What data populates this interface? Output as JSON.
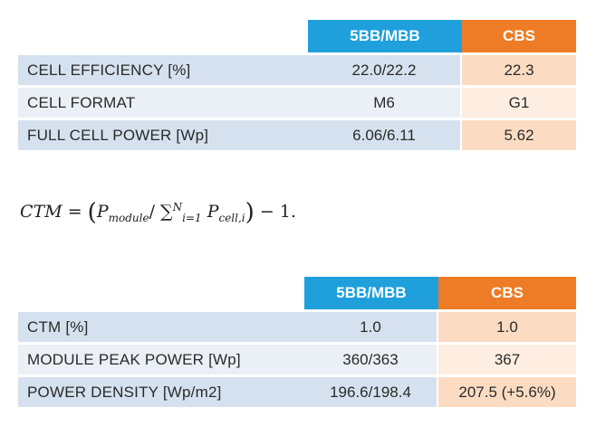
{
  "table1": {
    "headers": [
      "",
      "5BB/MBB",
      "CBS"
    ],
    "rows": [
      {
        "label": "CELL EFFICIENCY [%]",
        "mbb": "22.0/22.2",
        "cbs": "22.3"
      },
      {
        "label": "CELL FORMAT",
        "mbb": "M6",
        "cbs": "G1"
      },
      {
        "label": "FULL CELL POWER [Wp]",
        "mbb": "6.06/6.11",
        "cbs": "5.62"
      }
    ]
  },
  "formula": {
    "lhs": "CTM",
    "eq": " = ",
    "numerator": "P",
    "numerator_sub": "module",
    "slash": "/ ",
    "sum_sym": "∑",
    "sum_sub": "i=1",
    "sum_sup": "N",
    "term": "P",
    "term_sub": "cell,i",
    "tail": " − 1."
  },
  "table2": {
    "headers": [
      "",
      "5BB/MBB",
      "CBS"
    ],
    "rows": [
      {
        "label": "CTM [%]",
        "mbb": "1.0",
        "cbs": "1.0"
      },
      {
        "label": "MODULE PEAK POWER [Wp]",
        "mbb": "360/363",
        "cbs": "367"
      },
      {
        "label": "POWER DENSITY [Wp/m2]",
        "mbb": "196.6/198.4",
        "cbs": "207.5 (+5.6%)"
      }
    ]
  },
  "colors": {
    "header_blue": "#1fa0dc",
    "header_orange": "#ee7b25",
    "row_blue": "#d5e1ee",
    "row_orange": "#fbdcc2"
  }
}
